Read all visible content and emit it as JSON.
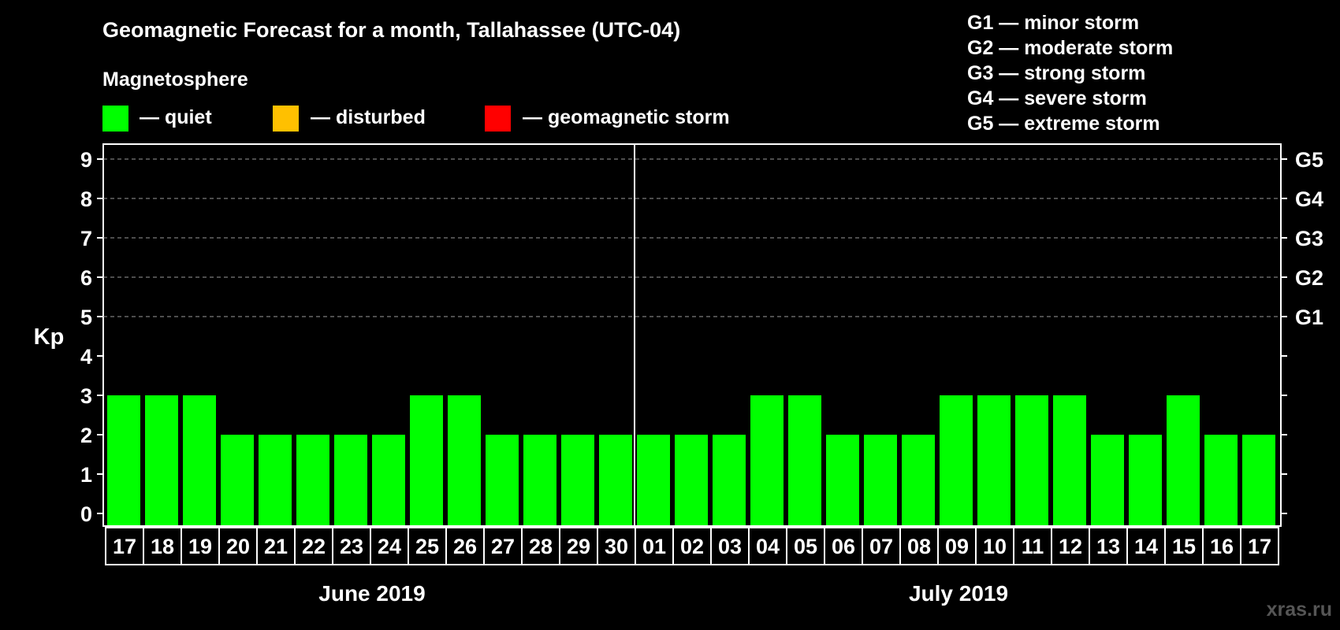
{
  "title": "Geomagnetic Forecast for a month, Tallahassee (UTC-04)",
  "legend": {
    "heading": "Magnetosphere",
    "items": [
      {
        "label": "— quiet",
        "color": "#00ff00"
      },
      {
        "label": "— disturbed",
        "color": "#ffc000"
      },
      {
        "label": "— geomagnetic storm",
        "color": "#ff0000"
      }
    ]
  },
  "storm_scale": [
    "G1 — minor storm",
    "G2 — moderate storm",
    "G3 — strong storm",
    "G4 — severe storm",
    "G5 — extreme storm"
  ],
  "watermark": "xras.ru",
  "chart_data": {
    "type": "bar",
    "title": "Geomagnetic Forecast for a month, Tallahassee (UTC-04)",
    "ylabel": "Kp",
    "ylim": [
      0,
      9
    ],
    "yticks": [
      "0",
      "1",
      "2",
      "3",
      "4",
      "5",
      "6",
      "7",
      "8",
      "9"
    ],
    "right_ticks": [
      {
        "kp": 5,
        "label": "G1"
      },
      {
        "kp": 6,
        "label": "G2"
      },
      {
        "kp": 7,
        "label": "G3"
      },
      {
        "kp": 8,
        "label": "G4"
      },
      {
        "kp": 9,
        "label": "G5"
      }
    ],
    "grid": "dashed horizontal lines at Kp 5-9",
    "categories": [
      "17",
      "18",
      "19",
      "20",
      "21",
      "22",
      "23",
      "24",
      "25",
      "26",
      "27",
      "28",
      "29",
      "30",
      "01",
      "02",
      "03",
      "04",
      "05",
      "06",
      "07",
      "08",
      "09",
      "10",
      "11",
      "12",
      "13",
      "14",
      "15",
      "16",
      "17"
    ],
    "values": [
      3,
      3,
      3,
      2,
      2,
      2,
      2,
      2,
      3,
      3,
      2,
      2,
      2,
      2,
      2,
      2,
      2,
      3,
      3,
      2,
      2,
      2,
      3,
      3,
      3,
      3,
      2,
      2,
      3,
      2,
      2
    ],
    "bar_color": "#00ff00",
    "months": [
      {
        "label": "June 2019",
        "start_index": 0,
        "count": 14
      },
      {
        "label": "July 2019",
        "start_index": 14,
        "count": 17
      }
    ]
  }
}
